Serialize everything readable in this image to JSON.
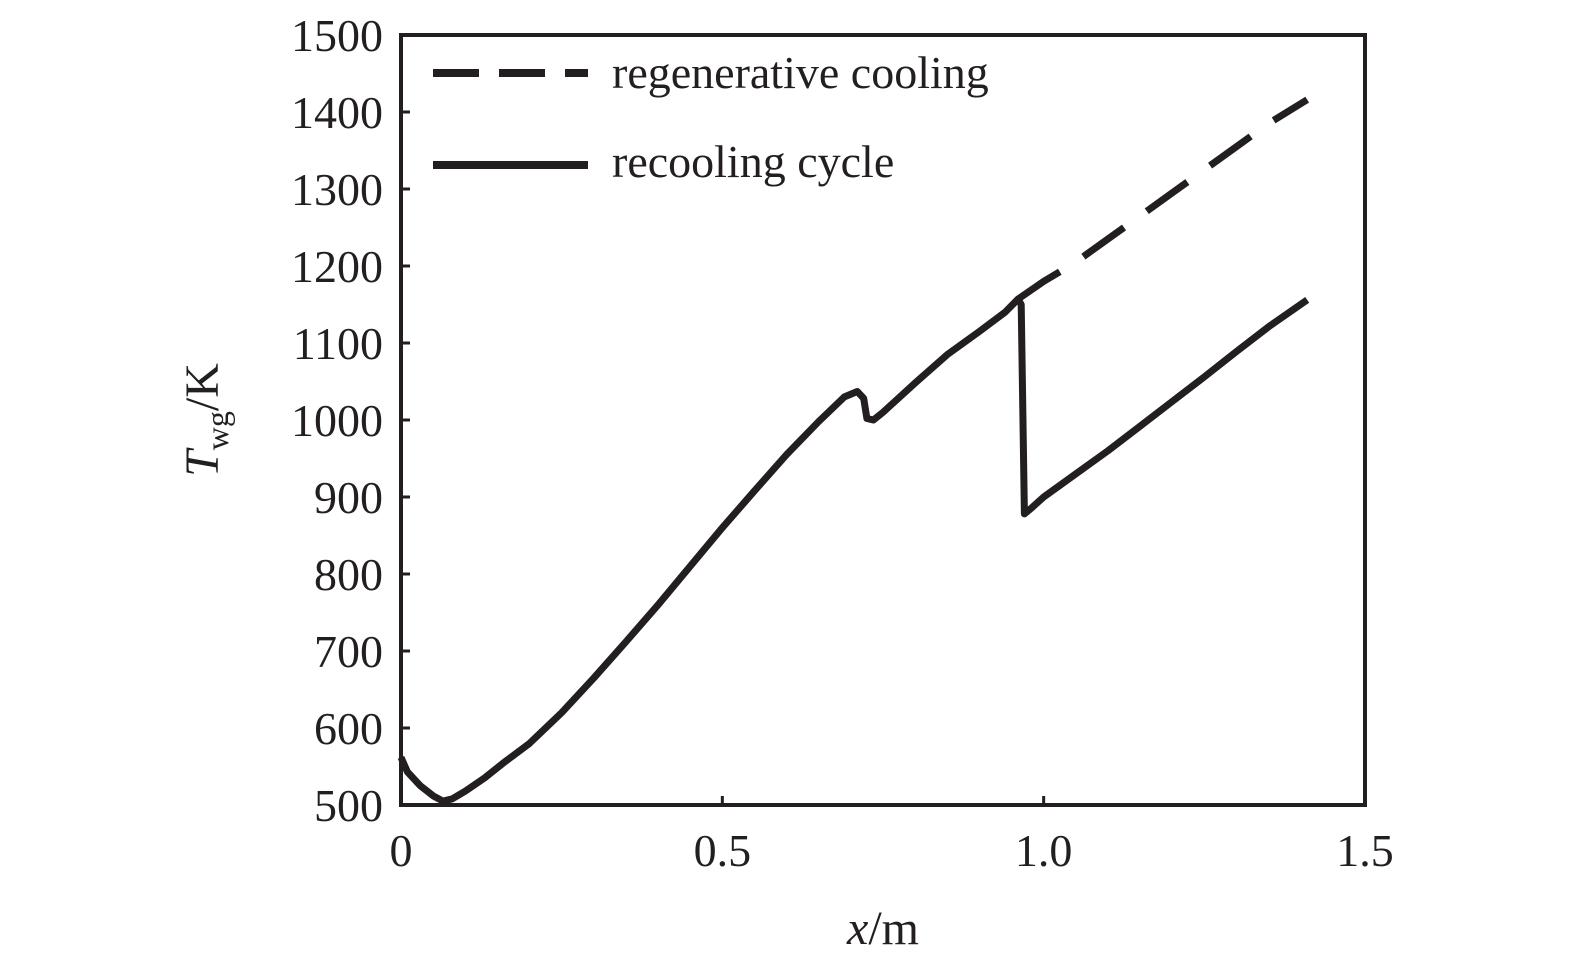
{
  "chart_data": {
    "type": "line",
    "title": "",
    "xlabel": {
      "symbol": "x",
      "unit": "/m"
    },
    "ylabel": {
      "symbol": "T",
      "subscript": "wg",
      "unit": "/K"
    },
    "xlim": [
      0,
      1.5
    ],
    "ylim": [
      500,
      1500
    ],
    "xticks": [
      {
        "value": 0,
        "label": "0"
      },
      {
        "value": 0.5,
        "label": "0.5"
      },
      {
        "value": 1.0,
        "label": "1.0"
      },
      {
        "value": 1.5,
        "label": "1.5"
      }
    ],
    "yticks": [
      {
        "value": 500,
        "label": "500"
      },
      {
        "value": 600,
        "label": "600"
      },
      {
        "value": 700,
        "label": "700"
      },
      {
        "value": 800,
        "label": "800"
      },
      {
        "value": 900,
        "label": "900"
      },
      {
        "value": 1000,
        "label": "1000"
      },
      {
        "value": 1100,
        "label": "1100"
      },
      {
        "value": 1200,
        "label": "1200"
      },
      {
        "value": 1300,
        "label": "1300"
      },
      {
        "value": 1400,
        "label": "1400"
      },
      {
        "value": 1500,
        "label": "1500"
      }
    ],
    "grid": false,
    "legend_position": "top-left",
    "series": [
      {
        "name": "regenerative cooling",
        "style": "dashed",
        "color": "#231f20",
        "points": [
          [
            0.96,
            1157
          ],
          [
            1.0,
            1180
          ],
          [
            1.05,
            1205
          ],
          [
            1.1,
            1235
          ],
          [
            1.15,
            1265
          ],
          [
            1.2,
            1295
          ],
          [
            1.25,
            1325
          ],
          [
            1.3,
            1355
          ],
          [
            1.35,
            1385
          ],
          [
            1.41,
            1416
          ]
        ]
      },
      {
        "name": "recooling cycle",
        "style": "solid",
        "color": "#231f20",
        "points": [
          [
            0.0,
            562
          ],
          [
            0.01,
            543
          ],
          [
            0.03,
            525
          ],
          [
            0.05,
            512
          ],
          [
            0.065,
            505
          ],
          [
            0.08,
            508
          ],
          [
            0.1,
            518
          ],
          [
            0.13,
            535
          ],
          [
            0.16,
            555
          ],
          [
            0.2,
            580
          ],
          [
            0.25,
            620
          ],
          [
            0.3,
            665
          ],
          [
            0.35,
            712
          ],
          [
            0.4,
            760
          ],
          [
            0.45,
            810
          ],
          [
            0.5,
            860
          ],
          [
            0.55,
            908
          ],
          [
            0.6,
            955
          ],
          [
            0.65,
            998
          ],
          [
            0.69,
            1030
          ],
          [
            0.71,
            1037
          ],
          [
            0.72,
            1028
          ],
          [
            0.725,
            1002
          ],
          [
            0.735,
            1000
          ],
          [
            0.75,
            1010
          ],
          [
            0.8,
            1048
          ],
          [
            0.85,
            1085
          ],
          [
            0.9,
            1115
          ],
          [
            0.94,
            1140
          ],
          [
            0.96,
            1157
          ],
          [
            0.965,
            1150
          ],
          [
            0.97,
            878
          ],
          [
            0.98,
            885
          ],
          [
            1.0,
            900
          ],
          [
            1.05,
            930
          ],
          [
            1.1,
            960
          ],
          [
            1.15,
            992
          ],
          [
            1.2,
            1024
          ],
          [
            1.25,
            1056
          ],
          [
            1.3,
            1089
          ],
          [
            1.35,
            1121
          ],
          [
            1.41,
            1156
          ]
        ]
      }
    ]
  }
}
